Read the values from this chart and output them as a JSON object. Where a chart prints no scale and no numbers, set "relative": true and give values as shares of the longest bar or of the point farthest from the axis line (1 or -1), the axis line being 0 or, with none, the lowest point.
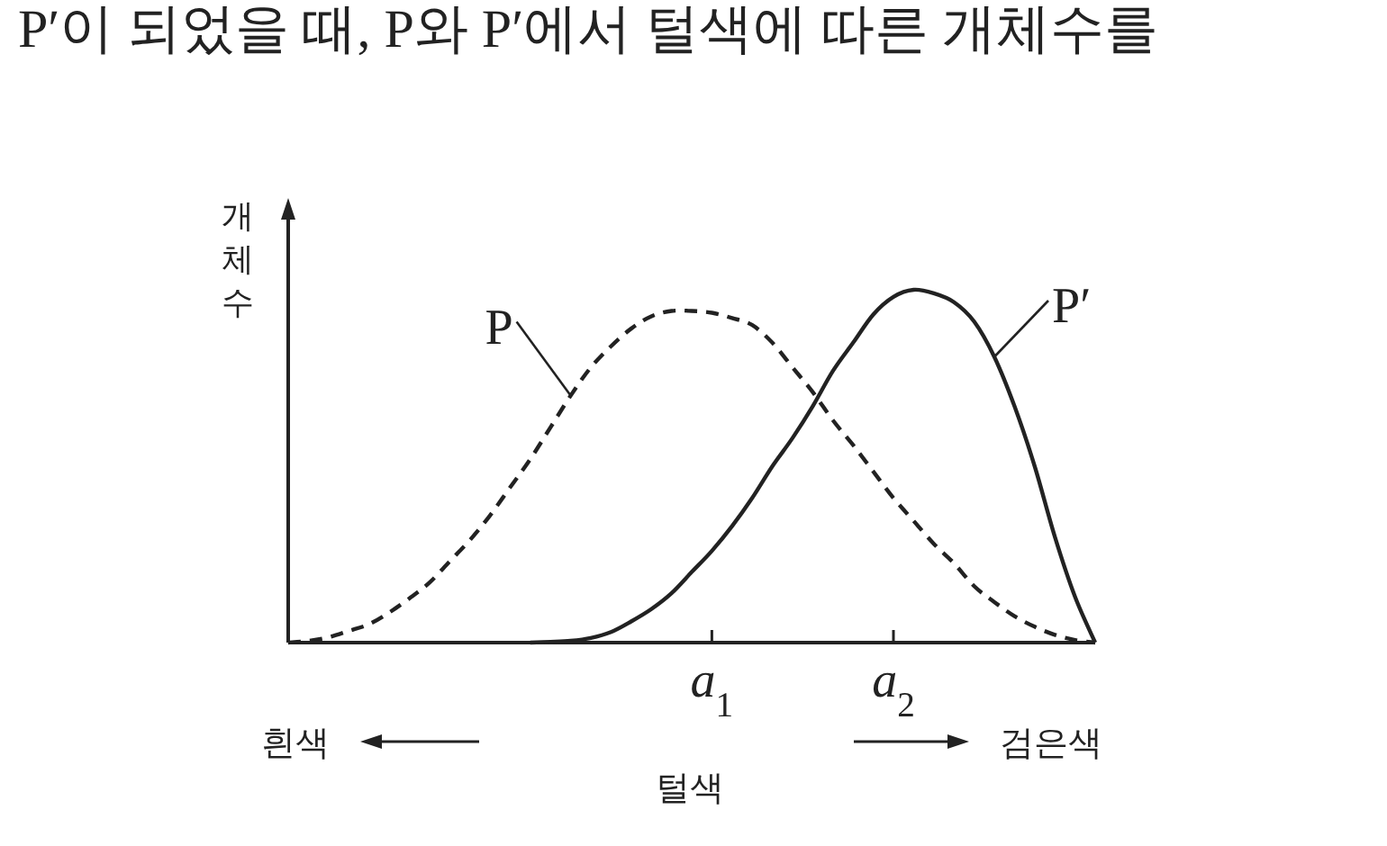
{
  "chart_data": {
    "type": "line",
    "relative": true,
    "xlabel": "털색",
    "ylabel": "개체수",
    "categories": [
      null,
      null,
      null,
      null,
      null,
      null,
      null,
      null,
      null,
      null,
      null,
      null,
      null,
      null,
      null,
      null,
      null,
      null,
      null,
      null,
      null,
      "a$_{1}$",
      null,
      null,
      null,
      null,
      null,
      null,
      null,
      null,
      "a$_{2}$",
      null,
      null,
      null,
      null,
      null,
      null,
      null,
      null,
      null,
      null
    ],
    "series": [
      {
        "name": "P",
        "color": "#222222",
        "line_style": "dashed",
        "values": [
          0,
          0.005,
          0.015,
          0.033,
          0.052,
          0.085,
          0.125,
          0.17,
          0.23,
          0.29,
          0.36,
          0.44,
          0.52,
          0.61,
          0.7,
          0.78,
          0.84,
          0.89,
          0.925,
          0.94,
          0.94,
          0.935,
          0.92,
          0.9,
          0.85,
          0.78,
          0.71,
          0.63,
          0.56,
          0.485,
          0.41,
          0.345,
          0.28,
          0.225,
          0.16,
          0.115,
          0.075,
          0.045,
          0.022,
          0.007,
          0
        ]
      },
      {
        "name": "P′",
        "color": "#222222",
        "line_style": "solid",
        "values": [
          null,
          null,
          null,
          null,
          null,
          null,
          null,
          null,
          null,
          null,
          null,
          null,
          0,
          0.002,
          0.005,
          0.013,
          0.03,
          0.06,
          0.095,
          0.14,
          0.2,
          0.26,
          0.33,
          0.41,
          0.5,
          0.58,
          0.67,
          0.77,
          0.85,
          0.93,
          0.98,
          1.0,
          0.99,
          0.965,
          0.91,
          0.81,
          0.67,
          0.5,
          0.3,
          0.13,
          0
        ]
      }
    ],
    "annotations": [
      "P′이 되었을 때, P와 P′에서 털색에 따른 개체수를",
      "흰색",
      "검은색"
    ]
  }
}
